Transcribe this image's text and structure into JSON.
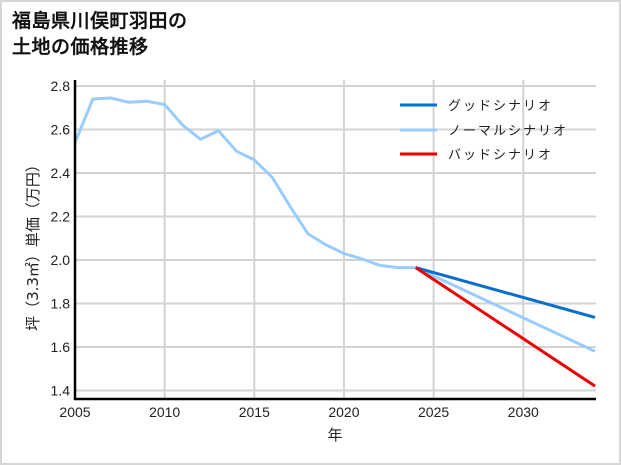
{
  "title": {
    "line1": "福島県川俣町羽田の",
    "line2": "土地の価格推移"
  },
  "chart_data": {
    "type": "line",
    "title": "福島県川俣町羽田の土地の価格推移",
    "xlabel": "年",
    "ylabel": "坪（3.3㎡）単価（万円）",
    "xlim": [
      2005,
      2034
    ],
    "ylim": [
      1.38,
      2.8
    ],
    "xticks": [
      2005,
      2010,
      2015,
      2020,
      2025,
      2030
    ],
    "yticks": [
      1.4,
      1.6,
      1.8,
      2.0,
      2.2,
      2.4,
      2.6,
      2.8
    ],
    "ytick_labels": [
      "1.4",
      "1.6",
      "1.8",
      "2.0",
      "2.2",
      "2.4",
      "2.6",
      "2.8"
    ],
    "grid": true,
    "legend_position": "upper right",
    "series": [
      {
        "name": "グッドシナリオ",
        "color": "#0a6fcc",
        "x": [
          2024,
          2034
        ],
        "values": [
          1.965,
          1.736
        ]
      },
      {
        "name": "ノーマルシナリオ",
        "color": "#99ccff",
        "x": [
          2005,
          2006,
          2007,
          2008,
          2009,
          2010,
          2011,
          2012,
          2013,
          2014,
          2015,
          2016,
          2017,
          2018,
          2019,
          2020,
          2021,
          2022,
          2023,
          2024,
          2034
        ],
        "values": [
          2.54,
          2.74,
          2.745,
          2.725,
          2.73,
          2.715,
          2.62,
          2.555,
          2.595,
          2.5,
          2.46,
          2.38,
          2.245,
          2.12,
          2.07,
          2.03,
          2.005,
          1.975,
          1.965,
          1.965,
          1.58
        ]
      },
      {
        "name": "バッドシナリオ",
        "color": "#ee0000",
        "x": [
          2024,
          2034
        ],
        "values": [
          1.965,
          1.42
        ]
      }
    ]
  }
}
